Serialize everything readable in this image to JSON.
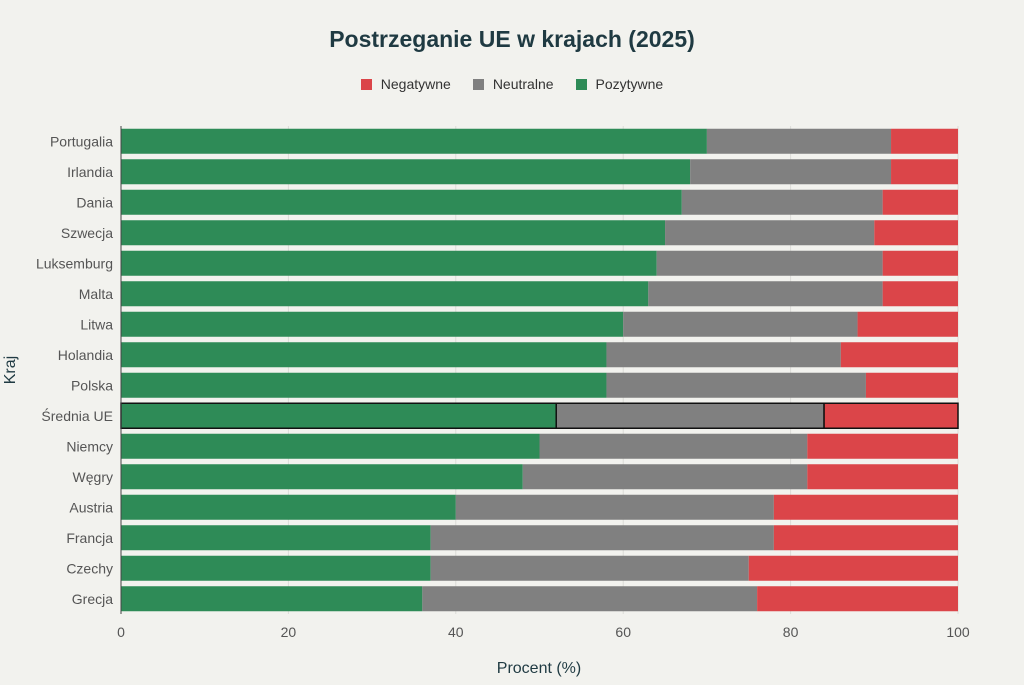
{
  "colors": {
    "background": "#f2f2ee",
    "negatywne": "#db4549",
    "neutralne": "#808080",
    "pozytywne": "#2e8b57",
    "grid": "#dcdcd8",
    "highlight_border": "#111111"
  },
  "chart_data": {
    "type": "bar",
    "orientation": "horizontal",
    "stacked": true,
    "title": "Postrzeganie UE w krajach (2025)",
    "xlabel": "Procent (%)",
    "ylabel": "Kraj",
    "xlim": [
      0,
      100
    ],
    "xticks": [
      0,
      20,
      40,
      60,
      80,
      100
    ],
    "legend_position": "top-center",
    "legend": [
      "Negatywne",
      "Neutralne",
      "Pozytywne"
    ],
    "highlighted_category": "Średnia UE",
    "categories": [
      "Portugalia",
      "Irlandia",
      "Dania",
      "Szwecja",
      "Luksemburg",
      "Malta",
      "Litwa",
      "Holandia",
      "Polska",
      "Średnia UE",
      "Niemcy",
      "Węgry",
      "Austria",
      "Francja",
      "Czechy",
      "Grecja"
    ],
    "series": [
      {
        "name": "Pozytywne",
        "values": [
          70,
          68,
          67,
          65,
          64,
          63,
          60,
          58,
          58,
          52,
          50,
          48,
          40,
          37,
          37,
          36
        ]
      },
      {
        "name": "Neutralne",
        "values": [
          22,
          24,
          24,
          25,
          27,
          28,
          28,
          28,
          31,
          32,
          32,
          34,
          38,
          41,
          38,
          40
        ]
      },
      {
        "name": "Negatywne",
        "values": [
          8,
          8,
          9,
          10,
          9,
          9,
          12,
          14,
          11,
          16,
          18,
          18,
          22,
          22,
          25,
          24
        ]
      }
    ]
  }
}
